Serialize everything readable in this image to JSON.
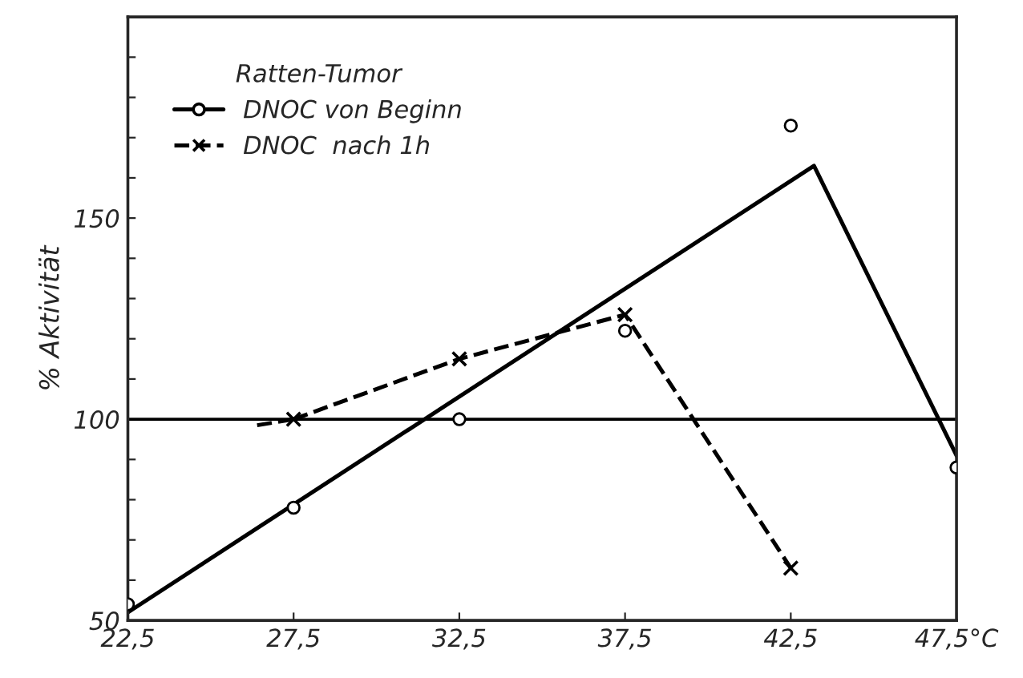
{
  "chart_data": {
    "type": "line",
    "ylabel": "% Aktivität",
    "legend_title": "Ratten-Tumor",
    "legend": "top left",
    "grid": false,
    "xlim": [
      22.5,
      47.5
    ],
    "xticks": [
      {
        "value": 22.5,
        "label": "22,5"
      },
      {
        "value": 27.5,
        "label": "27,5"
      },
      {
        "value": 32.5,
        "label": "32,5"
      },
      {
        "value": 37.5,
        "label": "37,5"
      },
      {
        "value": 42.5,
        "label": "42,5"
      },
      {
        "value": 47.5,
        "label": "47,5°C"
      }
    ],
    "ylim": [
      50,
      200
    ],
    "yticks": [
      50,
      {
        "value": 60,
        "label": null
      },
      {
        "value": 70,
        "label": null
      },
      {
        "value": 80,
        "label": null
      },
      {
        "value": 90,
        "label": null
      },
      100,
      {
        "value": 110,
        "label": null
      },
      {
        "value": 120,
        "label": null
      },
      {
        "value": 130,
        "label": null
      },
      {
        "value": 140,
        "label": null
      },
      150,
      {
        "value": 160,
        "label": null
      },
      {
        "value": 170,
        "label": null
      },
      {
        "value": 180,
        "label": null
      },
      {
        "value": 190,
        "label": null
      }
    ],
    "ref_lines": [
      {
        "axis": "y",
        "value": 100,
        "color": "#000000",
        "line_style": "solid"
      }
    ],
    "series": [
      {
        "type": "line",
        "color": "#000000",
        "line_style": "solid",
        "marker": "none",
        "x": [
          22.5,
          43.2,
          47.5
        ],
        "values": [
          52,
          163,
          91
        ]
      },
      {
        "type": "scatter",
        "name": "DNOC von Beginn",
        "color": "#000000",
        "marker": "circle",
        "line_style": "solid",
        "x": [
          22.5,
          27.5,
          32.5,
          37.5,
          42.5,
          47.5
        ],
        "values": [
          54,
          78,
          100,
          122,
          173,
          88
        ]
      },
      {
        "color": "#000000",
        "line_style": "dashed",
        "x": [
          26.4,
          27.5
        ],
        "values": [
          98.5,
          100
        ]
      },
      {
        "type": "line",
        "name": "DNOC  nach 1h",
        "color": "#000000",
        "marker": "cross",
        "line_style": "dashed",
        "x": [
          27.5,
          32.5,
          37.5,
          42.5
        ],
        "values": [
          100,
          115,
          126,
          63
        ]
      }
    ]
  }
}
